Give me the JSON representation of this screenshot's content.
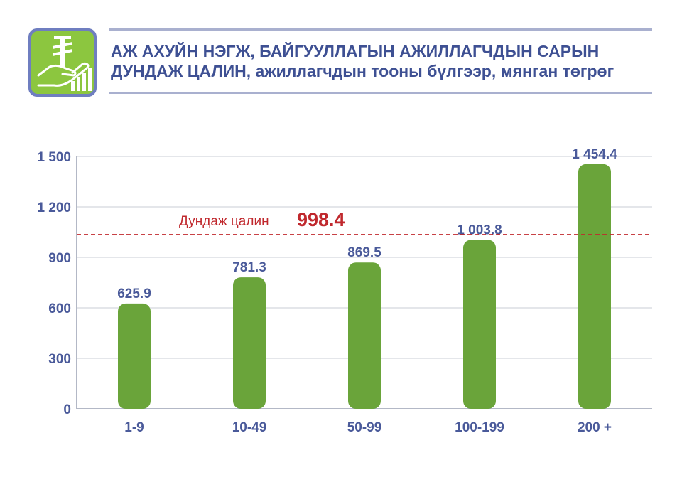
{
  "header": {
    "title_line1": "АЖ АХУЙН НЭГЖ, БАЙГУУЛЛАГЫН АЖИЛЛАГЧДЫН САРЫН",
    "title_line2_strong": "ДУНДАЖ ЦАЛИН,",
    "title_line2_rest": " ажиллагчдын тооны бүлгээр, мянган төгрөг"
  },
  "logo": {
    "icon": "tugrik-hand-chart-icon"
  },
  "colors": {
    "title": "#3e5093",
    "axis_text": "#4a5a9a",
    "bar": "#6aa43a",
    "average_line": "#c0282d",
    "grid": "#c9ccd6",
    "logo_bg": "#6f7ec0",
    "logo_fg": "#8cc63f"
  },
  "chart_data": {
    "type": "bar",
    "categories": [
      "1-9",
      "10-49",
      "50-99",
      "100-199",
      "200 +"
    ],
    "values": [
      625.9,
      781.3,
      869.5,
      1003.8,
      1454.4
    ],
    "value_labels": [
      "625.9",
      "781.3",
      "869.5",
      "1 003.8",
      "1 454.4"
    ],
    "ylim": [
      0,
      1500
    ],
    "yticks": [
      0,
      300,
      600,
      900,
      1200,
      1500
    ],
    "ytick_labels": [
      "0",
      "300",
      "600",
      "900",
      "1 200",
      "1 500"
    ],
    "grid": true,
    "average": {
      "label": "Дундаж цалин",
      "value_label": "998.4",
      "value": 998.4
    }
  }
}
